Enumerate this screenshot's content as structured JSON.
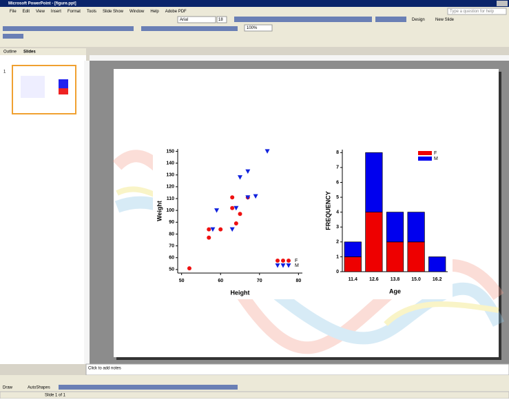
{
  "window": {
    "title": "Microsoft PowerPoint - [figure.ppt]"
  },
  "menu": [
    "File",
    "Edit",
    "View",
    "Insert",
    "Format",
    "Tools",
    "Slide Show",
    "Window",
    "Help",
    "Adobe PDF"
  ],
  "help_box": "Type a question for help",
  "toolbar": {
    "font": "Arial",
    "size": "18",
    "zoom": "100%",
    "design": "Design",
    "new_slide": "New Slide"
  },
  "tabs": [
    "Outline",
    "Slides"
  ],
  "slide_number": "1",
  "notes": "Click to add notes",
  "drawing_toolbar": {
    "draw": "Draw",
    "autoshapes": "AutoShapes"
  },
  "status": "Slide 1 of 1",
  "chart_data": [
    {
      "type": "scatter",
      "x_label": "Height",
      "y_label": "Weight",
      "xlim": [
        49,
        81
      ],
      "xticks": [
        50,
        60,
        70,
        80
      ],
      "ylim": [
        47,
        152
      ],
      "yticks": [
        50,
        60,
        70,
        80,
        90,
        100,
        110,
        120,
        130,
        140,
        150
      ],
      "legend": "lower right",
      "series": [
        {
          "name": "F",
          "color": "#ee1111",
          "marker": "circle",
          "x": [
            52,
            57,
            57,
            60,
            63,
            63,
            64,
            65,
            67
          ],
          "values": [
            51,
            77,
            84,
            84,
            111,
            102,
            89,
            97,
            111
          ]
        },
        {
          "name": "M",
          "color": "#1122dd",
          "marker": "triangle",
          "x": [
            58,
            59,
            63,
            64,
            65,
            67,
            67,
            69,
            72
          ],
          "values": [
            84,
            100,
            84,
            102,
            128,
            111,
            133,
            112,
            150
          ]
        }
      ]
    },
    {
      "type": "bar",
      "stacked": true,
      "x_label": "Age",
      "y_label": "FREQUENCY",
      "categories": [
        "11.4",
        "12.6",
        "13.8",
        "15.0",
        "16.2"
      ],
      "ylim": [
        0,
        8.2
      ],
      "yticks": [
        0,
        1,
        2,
        3,
        4,
        5,
        6,
        7,
        8
      ],
      "legend": "upper right",
      "series": [
        {
          "name": "F",
          "color": "#ee0000",
          "values": [
            1,
            4,
            2,
            2,
            0
          ]
        },
        {
          "name": "M",
          "color": "#0000ee",
          "values": [
            1,
            4,
            2,
            2,
            1
          ]
        }
      ]
    }
  ]
}
